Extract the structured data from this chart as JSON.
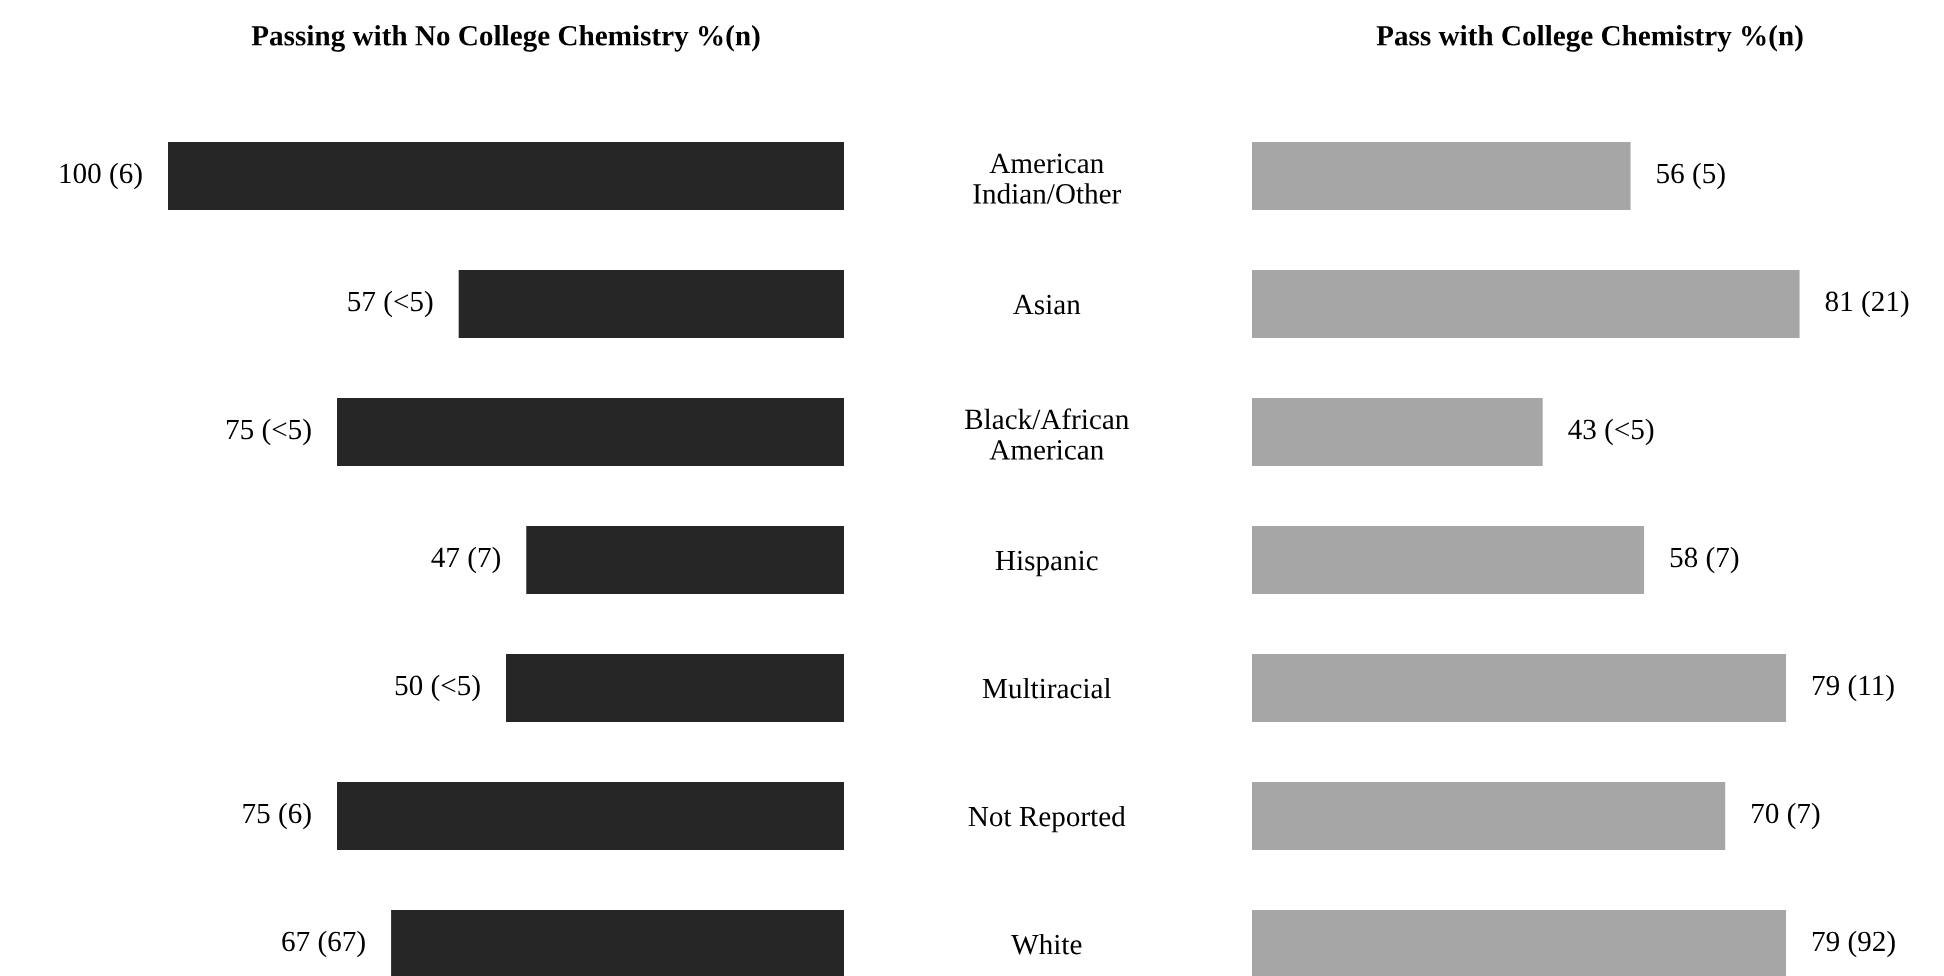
{
  "chart_data": [
    {
      "type": "bar",
      "orientation": "horizontal",
      "title": "Passing with No College Chemistry %(n)",
      "categories": [
        "American Indian/Other",
        "Asian",
        "Black/African American",
        "Hispanic",
        "Multiracial",
        "Not Reported",
        "White"
      ],
      "values": [
        100,
        57,
        75,
        47,
        50,
        75,
        67
      ],
      "color": "#262626",
      "value_labels": [
        "100 (6)",
        "57 (<5)",
        "75 (<5)",
        "47 (7)",
        "50 (<5)",
        "75 (6)",
        "67 (67)"
      ],
      "tick_labels": "y"
    },
    {
      "type": "bar",
      "orientation": "horizontal",
      "title": "Pass with College Chemistry %(n)",
      "categories": [
        null,
        null,
        null,
        null,
        null,
        null,
        null
      ],
      "values": [
        56,
        81,
        43,
        58,
        79,
        70,
        79
      ],
      "color": "#a6a6a6",
      "value_labels": [
        "56 (5)",
        "81 (21)",
        "43 (<5)",
        "58 (7)",
        "79 (11)",
        "70 (7)",
        "79 (92)"
      ],
      "tick_labels": false
    }
  ]
}
